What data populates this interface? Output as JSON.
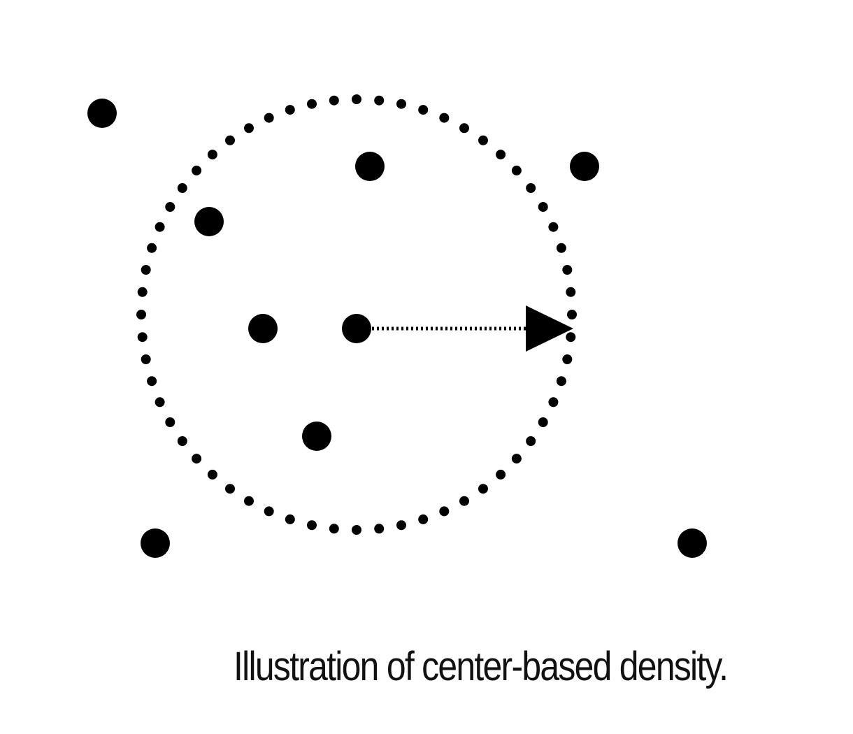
{
  "caption": "Illustration of center-based density.",
  "colors": {
    "ink": "#000000",
    "background": "#ffffff"
  },
  "diagram": {
    "points": [
      {
        "id": "outside-top-left"
      },
      {
        "id": "inside-top"
      },
      {
        "id": "outside-top-right"
      },
      {
        "id": "inside-upper-left"
      },
      {
        "id": "inside-left"
      },
      {
        "id": "center"
      },
      {
        "id": "inside-bottom"
      },
      {
        "id": "outside-bottom-left"
      },
      {
        "id": "outside-bottom-right"
      }
    ],
    "neighborhood": {
      "style": "dotted-circle"
    },
    "radius_arrow": {
      "style": "dotted-arrow",
      "from": "center",
      "to": "circle-edge"
    }
  }
}
